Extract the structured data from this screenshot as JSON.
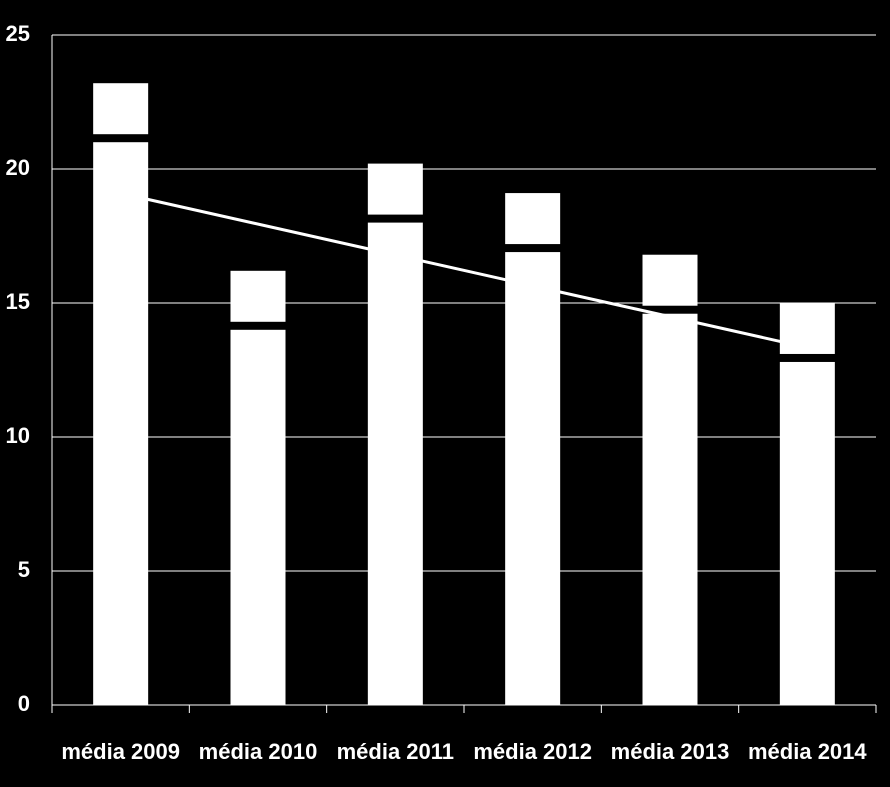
{
  "chart_data": {
    "type": "bar",
    "categories": [
      "média 2009",
      "média 2010",
      "média 2011",
      "média 2012",
      "média 2013",
      "média 2014"
    ],
    "values": [
      21,
      14,
      18,
      16.9,
      14.6,
      12.8
    ],
    "color": "#ffffff",
    "ylim": [
      0,
      25
    ],
    "yticks": [
      0,
      5,
      10,
      15,
      20,
      25
    ],
    "grid": true,
    "trendline": true
  }
}
